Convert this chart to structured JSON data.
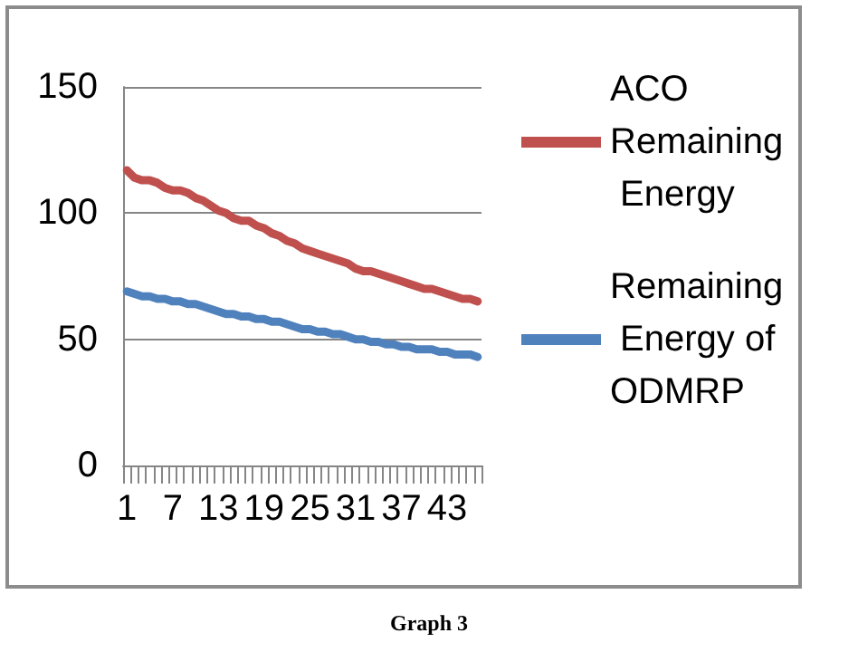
{
  "chart_data": {
    "type": "line",
    "categories": [
      "1",
      null,
      null,
      null,
      null,
      null,
      "7",
      null,
      null,
      null,
      null,
      null,
      "13",
      null,
      null,
      null,
      null,
      null,
      "19",
      null,
      null,
      null,
      null,
      null,
      "25",
      null,
      null,
      null,
      null,
      null,
      "31",
      null,
      null,
      null,
      null,
      null,
      "37",
      null,
      null,
      null,
      null,
      null,
      "43",
      null,
      null,
      null,
      null
    ],
    "series": [
      {
        "name": "ACO Remaining Energy",
        "color": "#c0504d",
        "values": [
          117,
          114,
          113,
          113,
          112,
          110,
          109,
          109,
          108,
          106,
          105,
          103,
          101,
          100,
          98,
          97,
          97,
          95,
          94,
          92,
          91,
          89,
          88,
          86,
          85,
          84,
          83,
          82,
          81,
          80,
          78,
          77,
          77,
          76,
          75,
          74,
          73,
          72,
          71,
          70,
          70,
          69,
          68,
          67,
          66,
          66,
          65
        ]
      },
      {
        "name": "Remaining Energy of ODMRP",
        "color": "#4f81bd",
        "values": [
          69,
          68,
          67,
          67,
          66,
          66,
          65,
          65,
          64,
          64,
          63,
          62,
          61,
          60,
          60,
          59,
          59,
          58,
          58,
          57,
          57,
          56,
          55,
          54,
          54,
          53,
          53,
          52,
          52,
          51,
          50,
          50,
          49,
          49,
          48,
          48,
          47,
          47,
          46,
          46,
          46,
          45,
          45,
          44,
          44,
          44,
          43
        ]
      }
    ],
    "ylim": [
      0,
      150
    ],
    "yticks": [
      0,
      50,
      100,
      150
    ],
    "grid": "y",
    "legend": "right",
    "marker": "none",
    "line_style": "solid",
    "annotations": [
      "Graph 3"
    ]
  }
}
